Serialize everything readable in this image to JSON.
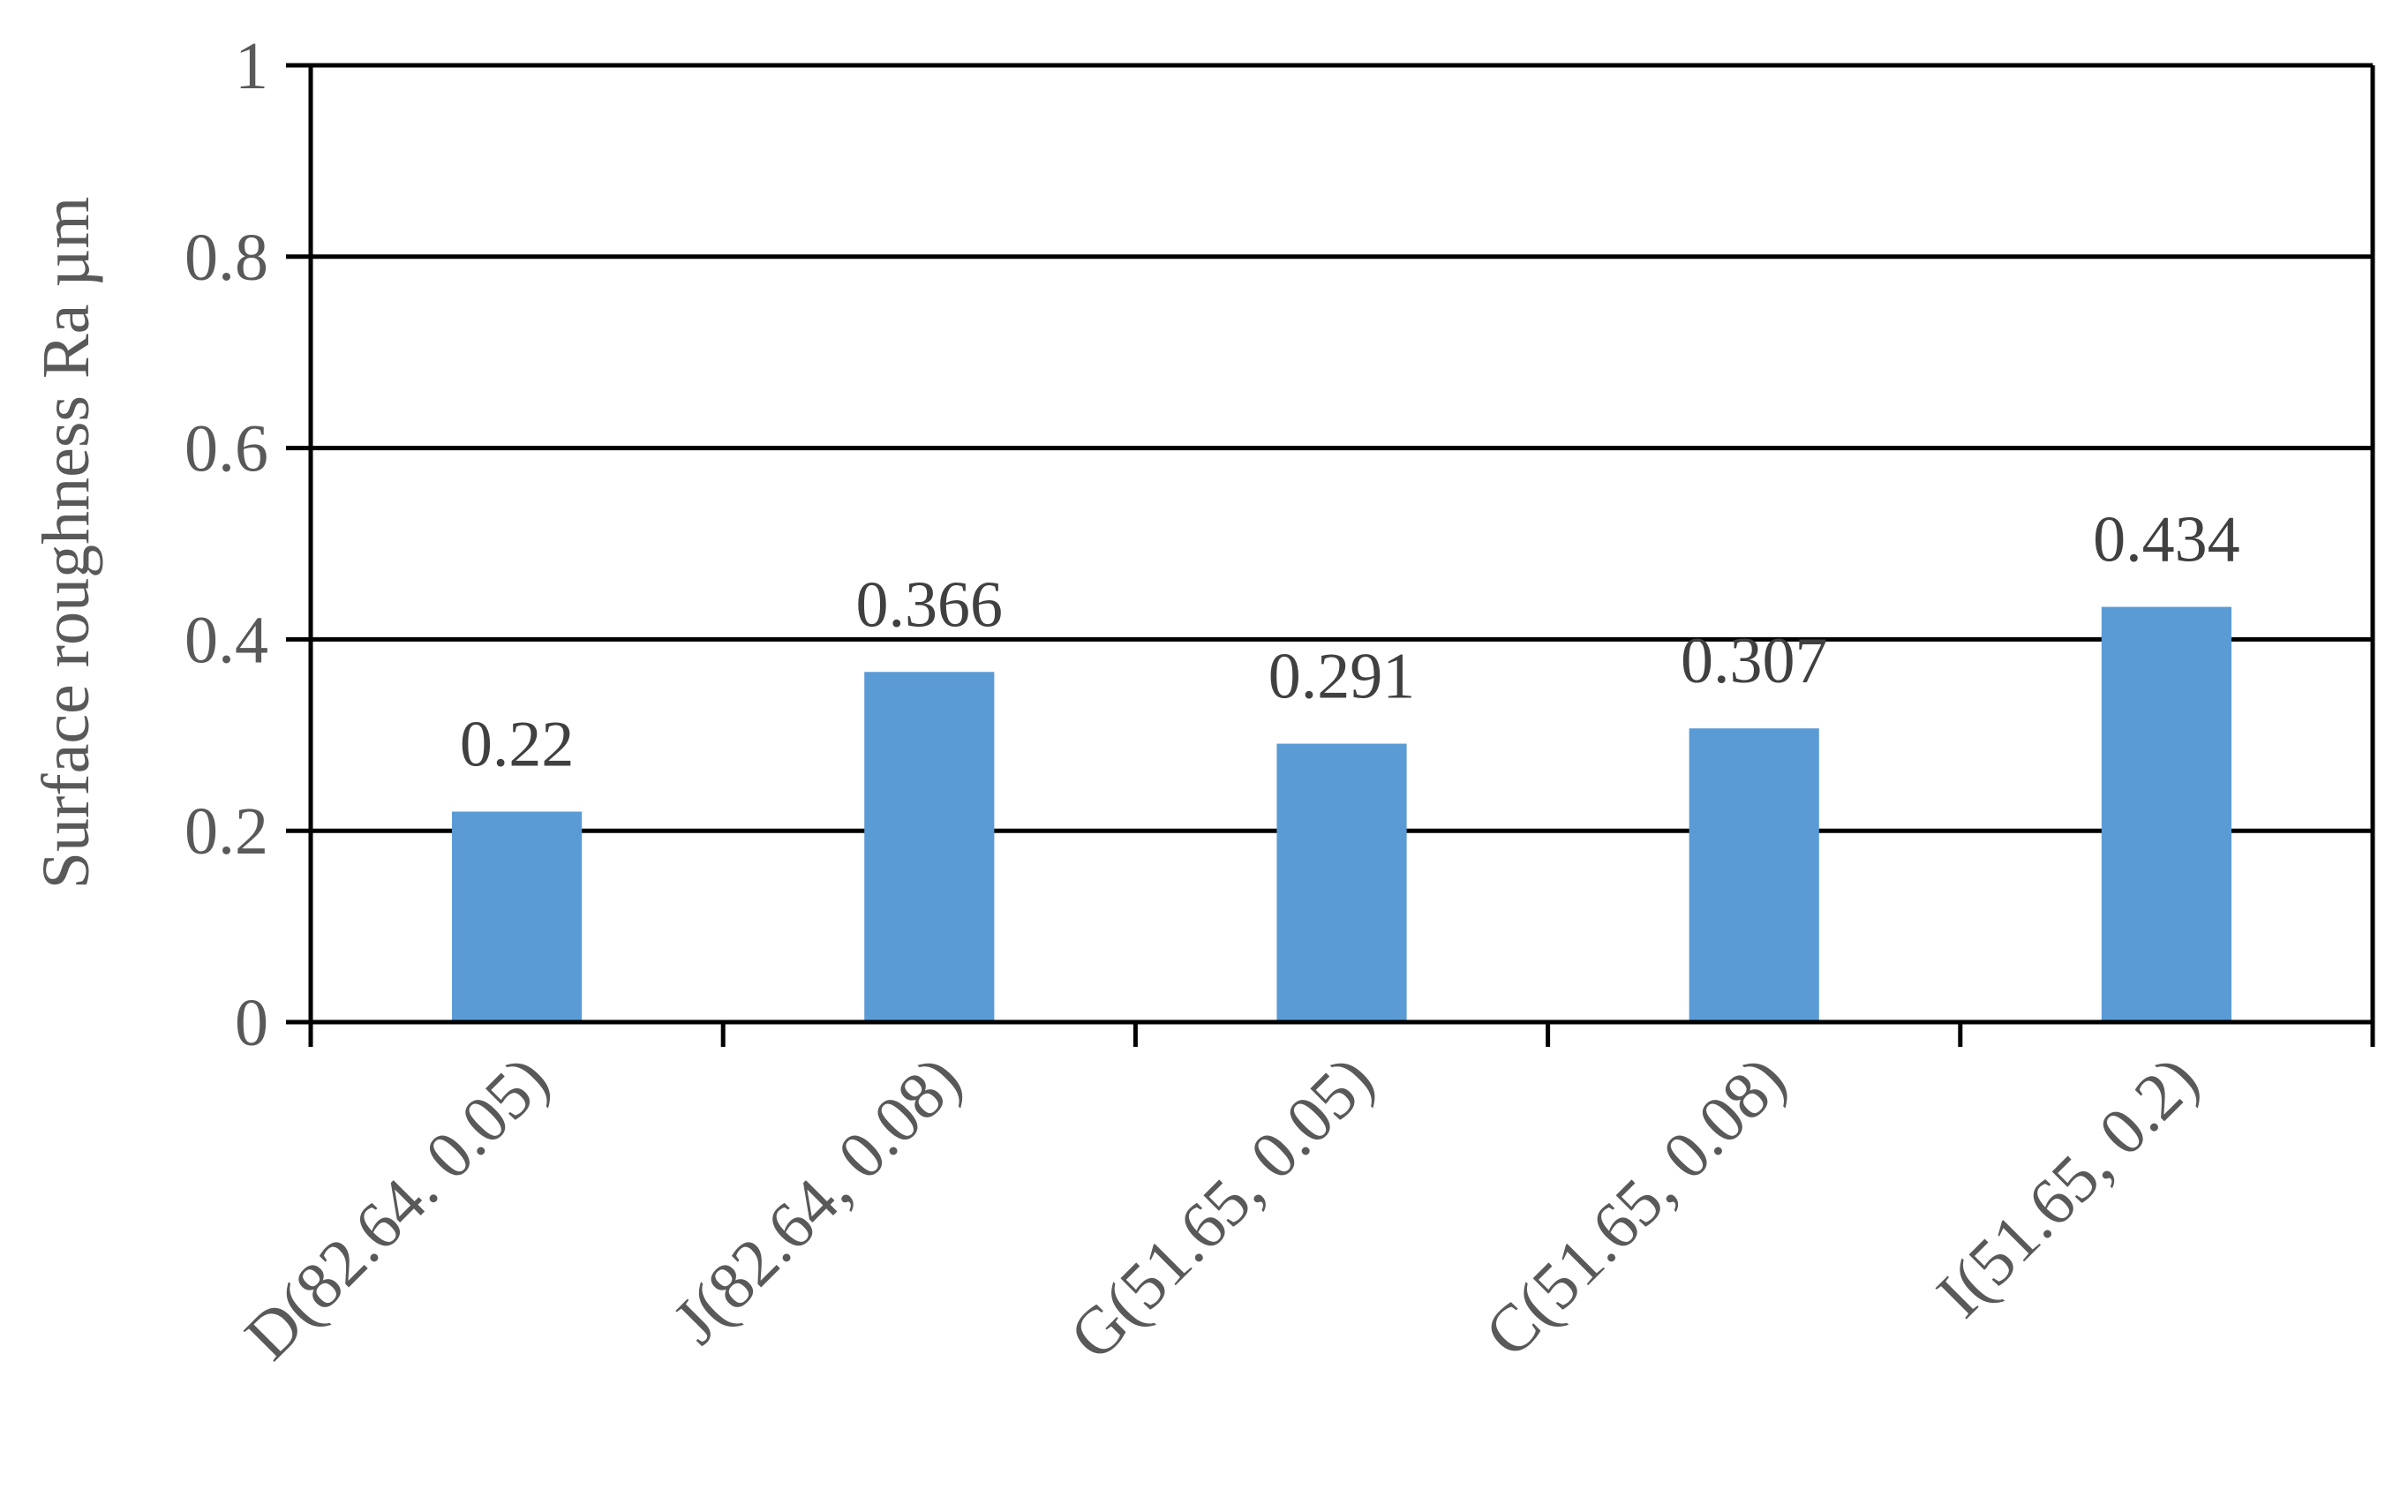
{
  "chart_data": {
    "type": "bar",
    "title": "",
    "xlabel": "",
    "ylabel": "Surface roughness Ra µm",
    "categories": [
      "D(82.64. 0.05)",
      "J(82.64, 0.08)",
      "G(51.65, 0.05)",
      "C(51.65, 0.08)",
      "I(51.65, 0.2)"
    ],
    "values": [
      0.22,
      0.366,
      0.291,
      0.307,
      0.434
    ],
    "data_labels": [
      "0.22",
      "0.366",
      "0.291",
      "0.307",
      "0.434"
    ],
    "ylim": [
      0,
      1
    ],
    "yticks": [
      0,
      0.2,
      0.4,
      0.6,
      0.8,
      1
    ],
    "ytick_labels": [
      "0",
      "0.2",
      "0.4",
      "0.6",
      "0.8",
      "1"
    ],
    "grid": true,
    "legend": "none",
    "colors": {
      "bar": "#5b9bd5",
      "axis": "#000000",
      "grid": "#000000",
      "text": "#595959"
    }
  }
}
